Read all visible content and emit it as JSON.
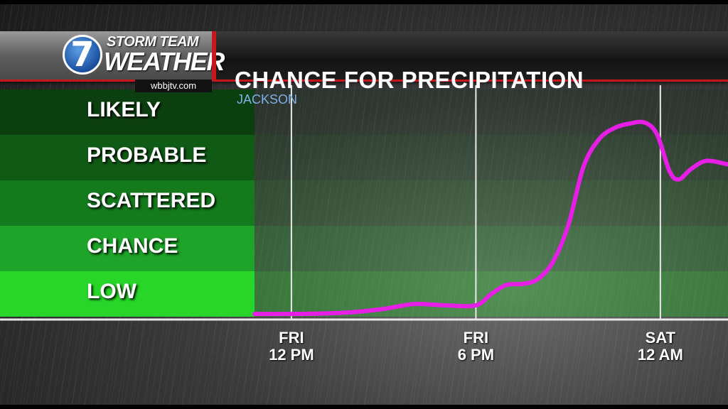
{
  "header": {
    "logo_number": "7",
    "logo_line1": "STORM TEAM",
    "logo_line2": "WEATHER",
    "site": "wbbjtv.com",
    "title": "CHANCE FOR PRECIPITATION",
    "subtitle": "JACKSON"
  },
  "colors": {
    "band_likely": "#0c3f10",
    "band_probable": "#0f5a15",
    "band_scattered": "#147a1c",
    "band_chance": "#1ea428",
    "band_low": "#27d628",
    "line": "#e61ee6",
    "accent": "#c8161d"
  },
  "chart_data": {
    "type": "line",
    "title": "CHANCE FOR PRECIPITATION",
    "subtitle": "JACKSON",
    "categories_y": [
      "LOW",
      "CHANCE",
      "SCATTERED",
      "PROBABLE",
      "LIKELY"
    ],
    "y_range": [
      0,
      5
    ],
    "x_range_hours": [
      -1.2,
      14.2
    ],
    "x_ticks": [
      {
        "hour": 0,
        "day": "FRI",
        "time": "12 PM"
      },
      {
        "hour": 6,
        "day": "FRI",
        "time": "6 PM"
      },
      {
        "hour": 12,
        "day": "SAT",
        "time": "12 AM"
      }
    ],
    "series": [
      {
        "x": [
          -1.2,
          0,
          1,
          2,
          3,
          4,
          5,
          6,
          6.5,
          7,
          7.5,
          8,
          8.5,
          9,
          9.5,
          10,
          10.5,
          11,
          11.5,
          11.9,
          12.3,
          12.6,
          13,
          13.5,
          14.2
        ],
        "y": [
          0.06,
          0.06,
          0.07,
          0.1,
          0.17,
          0.28,
          0.25,
          0.25,
          0.5,
          0.7,
          0.72,
          0.82,
          1.2,
          2.0,
          3.3,
          3.9,
          4.15,
          4.25,
          4.27,
          4.0,
          3.2,
          3.02,
          3.25,
          3.43,
          3.35
        ]
      }
    ]
  }
}
